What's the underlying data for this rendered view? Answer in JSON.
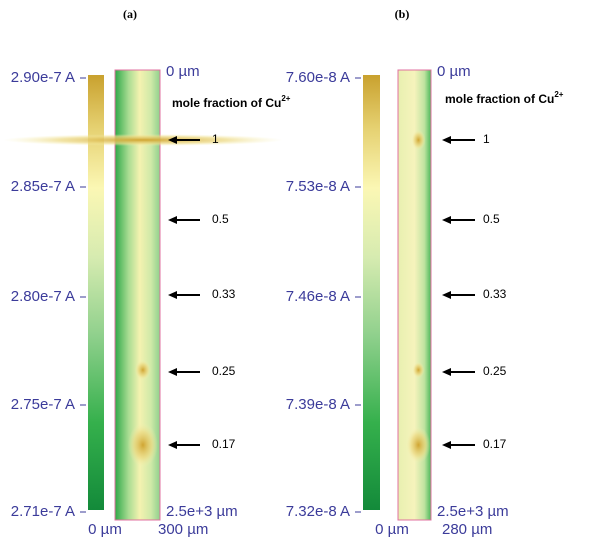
{
  "panels": [
    {
      "label": "(a)",
      "colorbar_ticks": [
        "2.90e-7 A",
        "2.85e-7 A",
        "2.80e-7 A",
        "2.75e-7 A",
        "2.71e-7 A"
      ],
      "depth_top": "0 µm",
      "depth_bottom": "2.5e+3 µm",
      "width_start": "0 µm",
      "width_end": "300 µm",
      "legend_title": "mole fraction of Cu",
      "legend_superscript": "2+",
      "markers": [
        "1",
        "0.5",
        "0.33",
        "0.25",
        "0.17"
      ]
    },
    {
      "label": "(b)",
      "colorbar_ticks": [
        "7.60e-8 A",
        "7.53e-8 A",
        "7.46e-8 A",
        "7.39e-8 A",
        "7.32e-8 A"
      ],
      "depth_top": "0 µm",
      "depth_bottom": "2.5e+3 µm",
      "width_start": "0 µm",
      "width_end": "280 µm",
      "legend_title": "mole fraction of Cu",
      "legend_superscript": "2+",
      "markers": [
        "1",
        "0.5",
        "0.33",
        "0.25",
        "0.17"
      ]
    }
  ]
}
